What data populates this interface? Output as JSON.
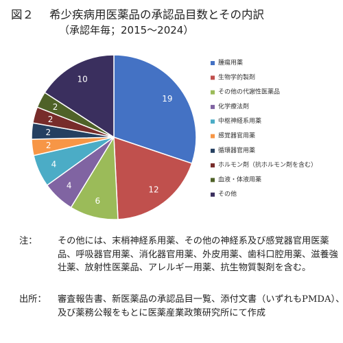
{
  "header": {
    "figure_number": "図２",
    "title": "希少疾病用医薬品の承認品目数とその内訳",
    "subtitle": "（承認年毎；2015〜2024）"
  },
  "chart_data": {
    "type": "pie",
    "title": "希少疾病用医薬品の承認品目数とその内訳",
    "legend_position": "right",
    "categories": [
      "腫瘍用薬",
      "生物学的製剤",
      "その他の代謝性医薬品",
      "化学療法剤",
      "中枢神経系用薬",
      "感覚器官用薬",
      "循環器官用薬",
      "ホルモン剤（抗ホルモン剤を含む）",
      "血液・体液用薬",
      "その他"
    ],
    "values": [
      19,
      12,
      6,
      4,
      4,
      2,
      2,
      2,
      2,
      10
    ],
    "colors": [
      "#4472c4",
      "#c0504d",
      "#9bbb59",
      "#8064a2",
      "#4bacc6",
      "#f79646",
      "#254061",
      "#772c2a",
      "#4f6228",
      "#3a2f5e"
    ]
  },
  "notes": {
    "note_label": "注：",
    "note_text": "その他には、末梢神経系用薬、その他の神経系及び感覚器官用医薬品、呼吸器官用薬、消化器官用薬、外皮用薬、歯科口腔用薬、滋養強壮薬、放射性医薬品、アレルギー用薬、抗生物質製剤を含む。",
    "source_label": "出所：",
    "source_text": "審査報告書、新医薬品の承認品目一覧、添付文書（いずれもPMDA）、及び薬務公報をもとに医薬産業政策研究所にて作成"
  }
}
